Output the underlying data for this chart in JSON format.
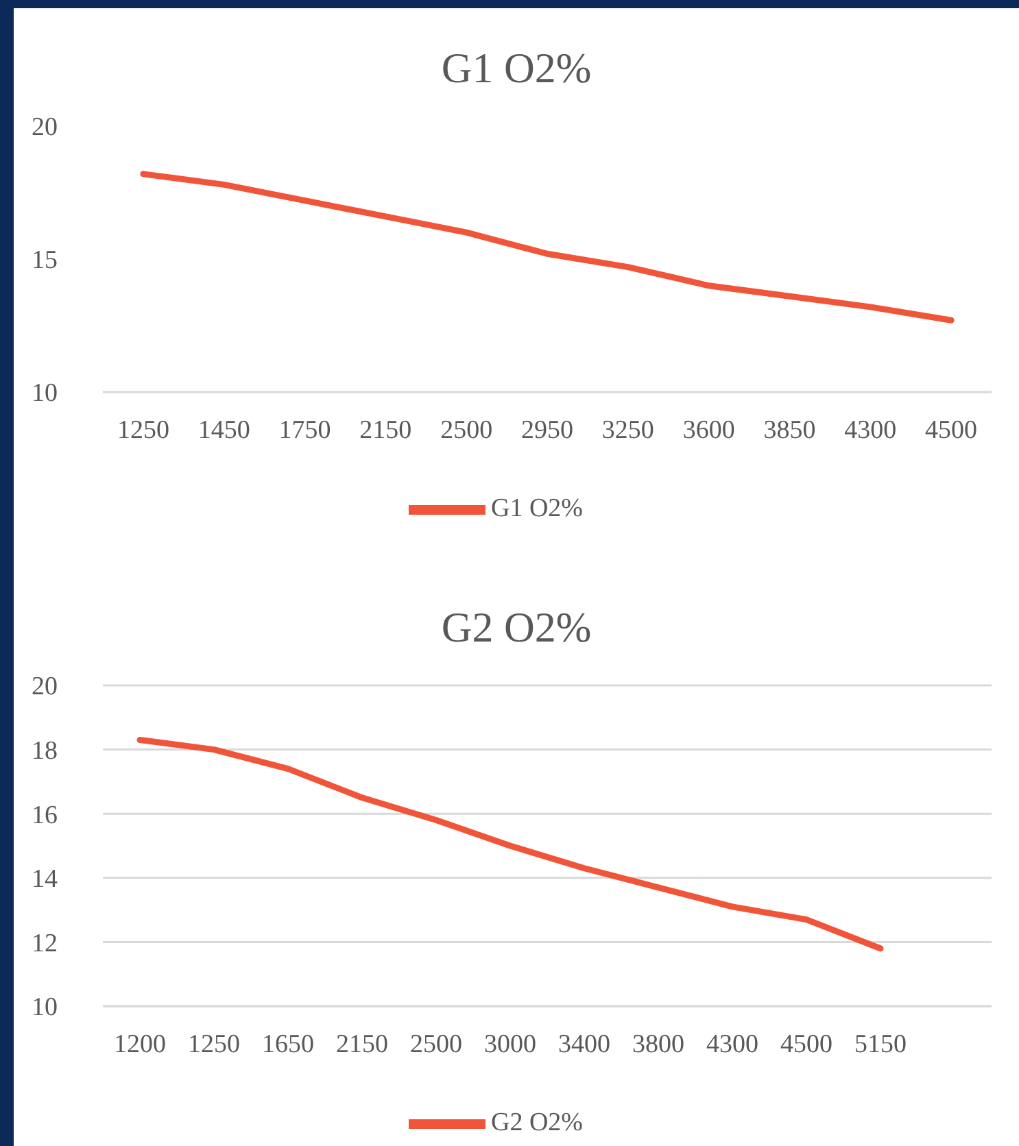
{
  "chart_data": [
    {
      "type": "line",
      "title": "G1 O2%",
      "categories": [
        "1250",
        "1450",
        "1750",
        "2150",
        "2500",
        "2950",
        "3250",
        "3600",
        "3850",
        "4300",
        "4500"
      ],
      "series": [
        {
          "name": "G1 O2%",
          "color": "#f0553a",
          "values": [
            18.2,
            17.8,
            17.2,
            16.6,
            16.0,
            15.2,
            14.7,
            14.0,
            13.6,
            13.2,
            12.7
          ]
        }
      ],
      "ylim": [
        10,
        20
      ],
      "yticks": [
        10,
        15,
        20
      ],
      "grid": false,
      "legend": "bottom"
    },
    {
      "type": "line",
      "title": "G2 O2%",
      "categories": [
        "1200",
        "1250",
        "1650",
        "2150",
        "2500",
        "3000",
        "3400",
        "3800",
        "4300",
        "4500",
        "5150",
        null
      ],
      "series": [
        {
          "name": "G2 O2%",
          "color": "#f0553a",
          "values": [
            18.3,
            18.0,
            17.4,
            16.5,
            15.8,
            15.0,
            14.3,
            13.7,
            13.1,
            12.7,
            11.8,
            null
          ]
        }
      ],
      "ylim": [
        10,
        20
      ],
      "yticks": [
        10,
        12,
        14,
        16,
        18,
        20
      ],
      "grid": "y",
      "legend": "bottom"
    }
  ]
}
